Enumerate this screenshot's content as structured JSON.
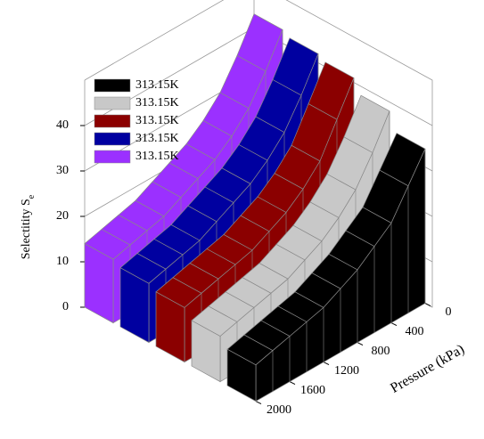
{
  "chart_data": {
    "type": "ribbon3d",
    "ylabel": "Selectitity S",
    "ylabel_sub": "e",
    "xlabel": "Pressure (kPa)",
    "x": [
      0,
      200,
      400,
      600,
      800,
      1000,
      1200,
      1400,
      1600,
      1800,
      2000
    ],
    "xlim": [
      0,
      2000
    ],
    "xticks": [
      0,
      400,
      800,
      1200,
      1600,
      2000
    ],
    "ylim": [
      0,
      50
    ],
    "yticks": [
      0,
      10,
      20,
      30,
      40
    ],
    "grid": true,
    "legend": "upper left",
    "series": [
      {
        "name": "313.15K",
        "color": "#000000",
        "values": [
          34,
          28,
          22,
          19,
          16,
          14,
          12,
          11,
          10,
          9,
          8
        ]
      },
      {
        "name": "313.15K",
        "color": "#c8c8c8",
        "values": [
          38,
          31,
          25,
          21,
          18,
          16,
          14,
          13,
          12,
          11,
          10
        ]
      },
      {
        "name": "313.15K",
        "color": "#8b0000",
        "values": [
          41,
          34,
          27,
          23,
          20,
          18,
          16,
          15,
          14,
          13,
          12
        ]
      },
      {
        "name": "313.15K",
        "color": "#0000a0",
        "values": [
          42,
          35,
          29,
          25,
          22,
          20,
          18,
          16,
          15,
          14,
          13
        ]
      },
      {
        "name": "313.15K",
        "color": "#9b30ff",
        "values": [
          43,
          36,
          30,
          26,
          23,
          21,
          19,
          17,
          16,
          15,
          14
        ]
      }
    ]
  }
}
